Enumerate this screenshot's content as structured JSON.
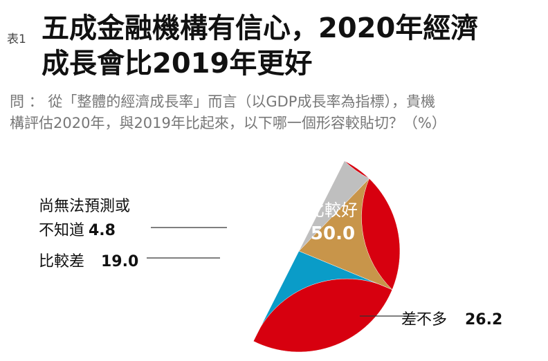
{
  "header": {
    "tag": "表1",
    "title_line1": "五成金融機構有信心，2020年經濟",
    "title_line2": "成長會比2019年更好"
  },
  "question": {
    "line1": "問 ： 從「整體的經濟成長率」而言（以GDP成長率為指標），貴機",
    "line2": "構評估2020年，與2019年比起來，以下哪一個形容較貼切？（%）"
  },
  "chart_data": {
    "type": "pie",
    "title": "",
    "unit": "%",
    "slices": [
      {
        "label": "比較好",
        "value": 50.0,
        "value_text": "50.0",
        "color": "#d7000f",
        "label_position": "inside"
      },
      {
        "label": "差不多",
        "value": 26.2,
        "value_text": "26.2",
        "color": "#0a9cc8",
        "label_position": "outside-right"
      },
      {
        "label": "比較差",
        "value": 19.0,
        "value_text": "19.0",
        "color": "#c8954a",
        "label_position": "outside-left"
      },
      {
        "label": "尚無法預測或不知道",
        "label_line1": "尚無法預測或",
        "label_line2": "不知道",
        "value": 4.8,
        "value_text": "4.8",
        "color": "#bfbfbf",
        "label_position": "outside-left"
      }
    ]
  }
}
